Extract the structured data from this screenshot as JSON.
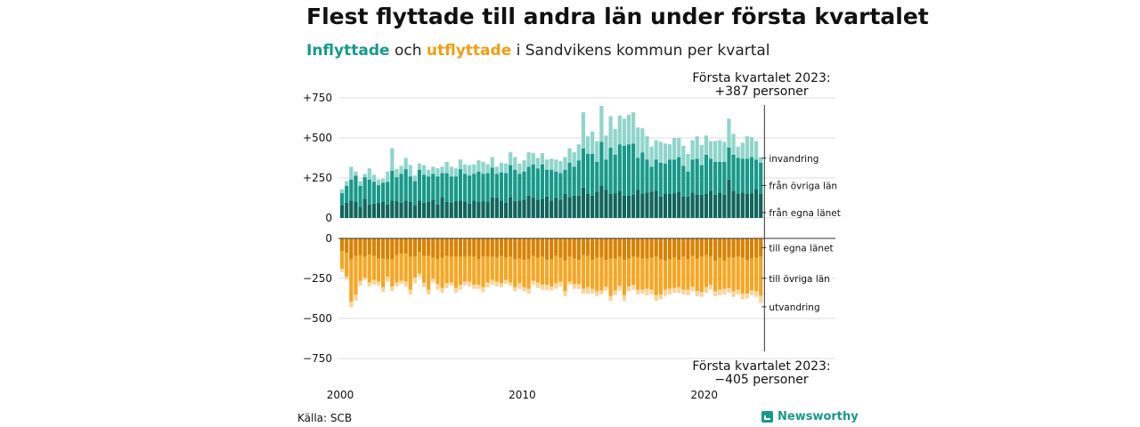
{
  "title": "Flest flyttade till andra län under första kvartalet",
  "subtitle": {
    "in_word": "Inflyttade",
    "and_word": "och",
    "out_word": "utflyttade",
    "rest": "i Sandvikens kommun per kvartal"
  },
  "source": "Källa: SCB",
  "brand": {
    "name": "Newsworthy",
    "icon": "newsworthy-logo-icon"
  },
  "colors": {
    "in_own": "#10655c",
    "in_other": "#17998a",
    "in_abroad": "#8fd5cb",
    "out_own": "#d98200",
    "out_other": "#f6a623",
    "out_abroad": "#fbd49b",
    "grid": "#dddddd",
    "axis": "#333333"
  },
  "chart_data": {
    "type": "bar",
    "stacked": true,
    "diverging": true,
    "period": "quarter",
    "x_start": "2000 Q1",
    "x_end": "2023 Q1",
    "x_ticks": [
      "2000",
      "2010",
      "2020"
    ],
    "y_ticks": [
      "+750",
      "+500",
      "+250",
      "0",
      "−250",
      "−500",
      "−750"
    ],
    "y_tick_values": [
      750,
      500,
      250,
      0,
      -250,
      -500,
      -750
    ],
    "ylim_in": [
      0,
      750
    ],
    "ylim_out": [
      -750,
      0
    ],
    "grid": true,
    "in_series": [
      {
        "name": "från egna länet",
        "values": [
          80,
          95,
          110,
          100,
          70,
          120,
          85,
          90,
          95,
          100,
          85,
          110,
          105,
          95,
          110,
          100,
          80,
          110,
          95,
          100,
          115,
          85,
          130,
          100,
          95,
          105,
          110,
          100,
          90,
          110,
          100,
          105,
          100,
          130,
          125,
          110,
          95,
          130,
          105,
          110,
          115,
          140,
          125,
          115,
          120,
          135,
          110,
          125,
          115,
          150,
          130,
          140,
          140,
          190,
          150,
          140,
          165,
          200,
          175,
          150,
          155,
          170,
          140,
          140,
          145,
          175,
          150,
          160,
          165,
          170,
          135,
          150,
          150,
          155,
          165,
          135,
          135,
          160,
          145,
          145,
          150,
          170,
          145,
          160,
          145,
          240,
          170,
          150,
          160,
          150,
          155,
          180,
          150
        ]
      },
      {
        "name": "från övriga län",
        "values": [
          75,
          105,
          130,
          165,
          130,
          135,
          155,
          135,
          110,
          120,
          140,
          185,
          150,
          180,
          195,
          160,
          150,
          190,
          175,
          160,
          160,
          175,
          150,
          180,
          165,
          155,
          195,
          175,
          175,
          165,
          190,
          170,
          180,
          185,
          150,
          175,
          185,
          200,
          195,
          165,
          175,
          180,
          210,
          195,
          215,
          165,
          190,
          165,
          165,
          150,
          215,
          180,
          220,
          245,
          250,
          260,
          185,
          275,
          190,
          290,
          240,
          290,
          310,
          320,
          320,
          200,
          260,
          205,
          155,
          195,
          210,
          190,
          215,
          210,
          215,
          190,
          155,
          205,
          225,
          185,
          245,
          200,
          205,
          190,
          205,
          200,
          225,
          225,
          210,
          220,
          225,
          185,
          195
        ]
      },
      {
        "name": "invandring",
        "values": [
          25,
          30,
          80,
          25,
          30,
          20,
          70,
          45,
          35,
          25,
          65,
          140,
          50,
          50,
          70,
          70,
          35,
          40,
          60,
          40,
          45,
          50,
          40,
          70,
          60,
          50,
          60,
          60,
          65,
          60,
          70,
          75,
          55,
          65,
          45,
          60,
          60,
          80,
          80,
          65,
          70,
          90,
          70,
          65,
          70,
          65,
          70,
          75,
          75,
          80,
          90,
          90,
          100,
          225,
          110,
          140,
          130,
          225,
          150,
          195,
          160,
          180,
          170,
          185,
          195,
          190,
          150,
          145,
          125,
          120,
          130,
          125,
          95,
          135,
          120,
          125,
          110,
          120,
          140,
          125,
          120,
          110,
          130,
          135,
          125,
          180,
          130,
          70,
          100,
          140,
          125,
          115,
          35
        ]
      }
    ],
    "out_series": [
      {
        "name": "till egna länet",
        "values": [
          -80,
          -90,
          -130,
          -110,
          -105,
          -115,
          -100,
          -110,
          -125,
          -125,
          -130,
          -130,
          -105,
          -95,
          -95,
          -115,
          -115,
          -85,
          -110,
          -110,
          -120,
          -130,
          -120,
          -110,
          -115,
          -115,
          -115,
          -115,
          -110,
          -115,
          -130,
          -115,
          -115,
          -115,
          -120,
          -110,
          -120,
          -115,
          -130,
          -125,
          -135,
          -130,
          -110,
          -120,
          -115,
          -135,
          -130,
          -110,
          -120,
          -140,
          -115,
          -125,
          -135,
          -105,
          -110,
          -135,
          -120,
          -120,
          -135,
          -125,
          -125,
          -115,
          -135,
          -125,
          -115,
          -120,
          -125,
          -125,
          -120,
          -115,
          -130,
          -140,
          -130,
          -120,
          -135,
          -115,
          -130,
          -110,
          -125,
          -115,
          -105,
          -115,
          -140,
          -120,
          -140,
          -120,
          -120,
          -115,
          -120,
          -135,
          -125,
          -120,
          -115
        ]
      },
      {
        "name": "till övriga län",
        "values": [
          -110,
          -150,
          -265,
          -240,
          -160,
          -130,
          -175,
          -150,
          -145,
          -180,
          -110,
          -170,
          -170,
          -170,
          -175,
          -205,
          -130,
          -135,
          -165,
          -210,
          -130,
          -155,
          -190,
          -170,
          -160,
          -195,
          -175,
          -155,
          -160,
          -175,
          -160,
          -190,
          -160,
          -145,
          -150,
          -170,
          -140,
          -160,
          -175,
          -155,
          -170,
          -185,
          -155,
          -155,
          -175,
          -155,
          -170,
          -170,
          -150,
          -190,
          -155,
          -160,
          -150,
          -210,
          -195,
          -180,
          -210,
          -205,
          -165,
          -235,
          -200,
          -180,
          -220,
          -175,
          -175,
          -200,
          -195,
          -190,
          -200,
          -240,
          -220,
          -180,
          -185,
          -190,
          -170,
          -205,
          -190,
          -190,
          -205,
          -220,
          -200,
          -175,
          -190,
          -200,
          -175,
          -190,
          -210,
          -205,
          -225,
          -210,
          -200,
          -210,
          -245
        ]
      },
      {
        "name": "utvandring",
        "values": [
          -20,
          -15,
          -35,
          -40,
          -30,
          -15,
          -25,
          -30,
          -25,
          -30,
          -30,
          -30,
          -25,
          -20,
          -30,
          -30,
          -35,
          -20,
          -30,
          -30,
          -25,
          -35,
          -30,
          -30,
          -20,
          -30,
          -30,
          -25,
          -30,
          -25,
          -25,
          -30,
          -30,
          -30,
          -30,
          -25,
          -25,
          -20,
          -25,
          -35,
          -25,
          -30,
          -25,
          -35,
          -30,
          -35,
          -25,
          -35,
          -30,
          -30,
          -20,
          -30,
          -30,
          -30,
          -40,
          -30,
          -30,
          -25,
          -25,
          -30,
          -30,
          -30,
          -35,
          -30,
          -30,
          -30,
          -25,
          -40,
          -30,
          -35,
          -30,
          -40,
          -35,
          -30,
          -35,
          -30,
          -35,
          -30,
          -30,
          -30,
          -35,
          -30,
          -30,
          -35,
          -35,
          -30,
          -35,
          -30,
          -35,
          -30,
          -30,
          -35,
          -45
        ]
      }
    ],
    "annotations": {
      "top": {
        "line1": "Första kvartalet 2023:",
        "line2": "+387 personer",
        "value": 387
      },
      "bottom": {
        "line1": "Första kvartalet 2023:",
        "line2": "−405 personer",
        "value": -405
      }
    }
  }
}
